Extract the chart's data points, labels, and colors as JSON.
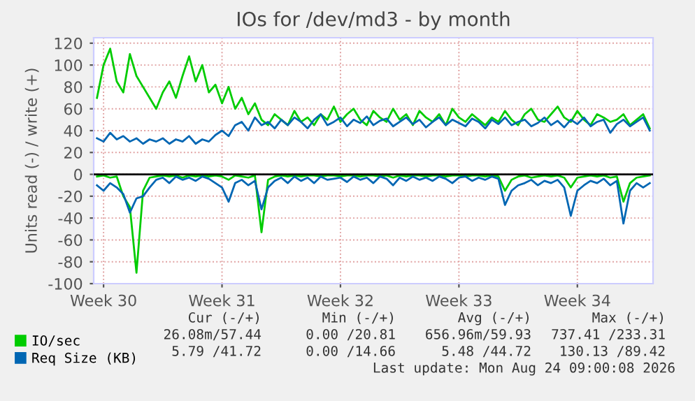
{
  "chart_data": {
    "type": "line",
    "title": "IOs for /dev/md3 - by month",
    "ylabel": "Units read (-) / write (+)",
    "categories": [
      null,
      "Week 30",
      null,
      null,
      null,
      null,
      null,
      null,
      null,
      null,
      null,
      null,
      null,
      null,
      null,
      null,
      null,
      null,
      null,
      "Week 31",
      null,
      null,
      null,
      null,
      null,
      null,
      null,
      null,
      null,
      null,
      null,
      null,
      null,
      null,
      null,
      null,
      null,
      "Week 32",
      null,
      null,
      null,
      null,
      null,
      null,
      null,
      null,
      null,
      null,
      null,
      null,
      null,
      null,
      null,
      null,
      null,
      "Week 33",
      null,
      null,
      null,
      null,
      null,
      null,
      null,
      null,
      null,
      null,
      null,
      null,
      null,
      null,
      null,
      null,
      null,
      "Week 34",
      null,
      null,
      null,
      null,
      null,
      null,
      null,
      null,
      null,
      null,
      null
    ],
    "ylim": [
      -100,
      125
    ],
    "yticks": [
      -100,
      -80,
      -60,
      -40,
      -20,
      0,
      20,
      40,
      60,
      80,
      100,
      120
    ],
    "grid": true,
    "legend": "bottom left",
    "line_style": "solid",
    "ref_lines": [
      {
        "axis": "y",
        "value": 0,
        "color": "#000000"
      }
    ],
    "series": [
      {
        "name": "IO/sec",
        "color": "#00cc00",
        "values": [
          70,
          100,
          115,
          85,
          75,
          110,
          90,
          80,
          70,
          60,
          75,
          85,
          70,
          90,
          108,
          85,
          100,
          75,
          82,
          65,
          80,
          60,
          70,
          55,
          65,
          50,
          45,
          55,
          50,
          45,
          58,
          48,
          52,
          45,
          55,
          50,
          62,
          48,
          55,
          60,
          50,
          45,
          58,
          52,
          48,
          60,
          50,
          55,
          45,
          58,
          52,
          48,
          55,
          45,
          60,
          52,
          48,
          55,
          50,
          45,
          52,
          48,
          58,
          50,
          45,
          55,
          60,
          50,
          48,
          55,
          62,
          52,
          48,
          58,
          50,
          45,
          55,
          52,
          48,
          50,
          55,
          45,
          50,
          55,
          42
        ]
      },
      {
        "color": "#00cc00",
        "values": [
          -2,
          -1,
          -3,
          -2,
          -20,
          -30,
          -90,
          -15,
          -3,
          -2,
          -1,
          -2,
          -1,
          -3,
          -1,
          -2,
          -1,
          -2,
          -1,
          -2,
          -5,
          -1,
          -2,
          -3,
          -1,
          -53,
          -5,
          -2,
          -1,
          -2,
          -1,
          -2,
          -1,
          -1,
          -2,
          -1,
          -1,
          -2,
          -1,
          -1,
          -2,
          -1,
          -1,
          -2,
          -1,
          -3,
          -1,
          -2,
          -1,
          -1,
          -2,
          -1,
          -1,
          -2,
          -1,
          -1,
          -2,
          -1,
          -1,
          -2,
          -1,
          -2,
          -15,
          -5,
          -2,
          -1,
          -3,
          -2,
          -1,
          -2,
          -1,
          -3,
          -12,
          -3,
          -2,
          -1,
          -2,
          -1,
          -3,
          -2,
          -25,
          -8,
          -3,
          -2,
          -1
        ]
      },
      {
        "name": "Req Size (KB)",
        "color": "#0066b3",
        "values": [
          33,
          30,
          38,
          32,
          35,
          30,
          33,
          28,
          32,
          30,
          33,
          28,
          32,
          30,
          35,
          28,
          32,
          30,
          36,
          40,
          35,
          45,
          48,
          40,
          52,
          45,
          48,
          42,
          50,
          45,
          52,
          48,
          42,
          50,
          55,
          45,
          48,
          52,
          44,
          50,
          47,
          53,
          45,
          49,
          51,
          44,
          48,
          52,
          46,
          50,
          43,
          48,
          52,
          45,
          50,
          47,
          44,
          51,
          48,
          42,
          50,
          46,
          52,
          45,
          48,
          50,
          44,
          47,
          52,
          45,
          49,
          43,
          50,
          46,
          52,
          44,
          48,
          50,
          38,
          46,
          50,
          44,
          48,
          52,
          40
        ]
      },
      {
        "color": "#0066b3",
        "values": [
          -10,
          -15,
          -8,
          -12,
          -18,
          -35,
          -22,
          -20,
          -12,
          -5,
          -3,
          -8,
          -2,
          -5,
          -3,
          -6,
          -2,
          -4,
          -8,
          -12,
          -25,
          -8,
          -5,
          -10,
          -6,
          -32,
          -12,
          -6,
          -3,
          -8,
          -2,
          -6,
          -3,
          -8,
          -2,
          -5,
          -4,
          -3,
          -7,
          -2,
          -5,
          -3,
          -8,
          -2,
          -4,
          -10,
          -3,
          -6,
          -2,
          -5,
          -3,
          -6,
          -2,
          -4,
          -8,
          -3,
          -2,
          -6,
          -3,
          -5,
          -2,
          -4,
          -28,
          -15,
          -10,
          -8,
          -5,
          -10,
          -6,
          -8,
          -5,
          -12,
          -38,
          -15,
          -10,
          -6,
          -8,
          -4,
          -10,
          -6,
          -45,
          -15,
          -8,
          -12,
          -8
        ]
      }
    ],
    "annotations": [
      "Cur (-/+)",
      "Min (-/+)",
      "Avg (-/+)",
      "Max (-/+)",
      "26.08m/57.44",
      "0.00 /20.81",
      "656.96m/59.93",
      "737.41 /233.31",
      "5.79 /41.72",
      "0.00 /14.66",
      "5.48 /44.72",
      "130.13 /89.42",
      "Last update: Mon Aug 24 09:00:08 2026"
    ]
  }
}
